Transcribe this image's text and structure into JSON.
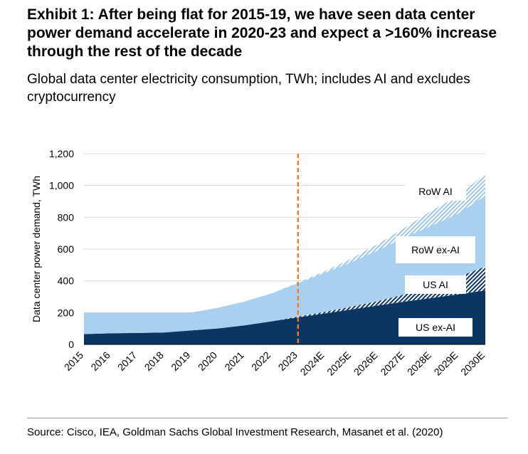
{
  "title": "Exhibit 1: After being flat for 2015-19, we have seen data center power demand accelerate in 2020-23 and expect a >160% increase through the rest of the decade",
  "subtitle": "Global data center electricity consumption, TWh; includes AI and excludes cryptocurrency",
  "source": "Source: Cisco, IEA, Goldman Sachs Global Investment Research, Masanet et al. (2020)",
  "colors": {
    "us_ex_ai": "#0b3563",
    "us_ai_hatch": "#0b3563",
    "row_ex_ai": "#a9d0ef",
    "row_ai_hatch": "#9dc8ec",
    "divider": "#e87b2c",
    "grid": "#d9d9d9"
  },
  "chart_data": {
    "type": "area",
    "stacked": true,
    "categories": [
      "2015",
      "2016",
      "2017",
      "2018",
      "2019",
      "2020",
      "2021",
      "2022",
      "2023",
      "2024E",
      "2025E",
      "2026E",
      "2027E",
      "2028E",
      "2029E",
      "2030E"
    ],
    "series": [
      {
        "name": "US ex-AI",
        "fill": "solid",
        "values": [
          65,
          70,
          72,
          75,
          88,
          100,
          120,
          145,
          170,
          195,
          220,
          245,
          270,
          292,
          315,
          340
        ]
      },
      {
        "name": "US AI",
        "fill": "hatched",
        "values": [
          0,
          0,
          0,
          0,
          0,
          0,
          0,
          0,
          5,
          10,
          18,
          28,
          45,
          75,
          110,
          150
        ]
      },
      {
        "name": "RoW ex-AI",
        "fill": "solid",
        "values": [
          135,
          130,
          128,
          125,
          112,
          130,
          150,
          175,
          210,
          245,
          280,
          320,
          360,
          380,
          400,
          445
        ]
      },
      {
        "name": "RoW AI",
        "fill": "hatched",
        "values": [
          0,
          0,
          0,
          0,
          0,
          0,
          0,
          0,
          5,
          10,
          22,
          40,
          60,
          95,
          110,
          140
        ]
      }
    ],
    "ylabel": "Data center power demand, TWh",
    "ylim": [
      0,
      1200
    ],
    "yticks": [
      0,
      200,
      400,
      600,
      800,
      1000,
      1200
    ],
    "ytick_labels": [
      "0",
      "200",
      "400",
      "600",
      "800",
      "1,000",
      "1,200"
    ],
    "vertical_marker": "2023",
    "grid": true,
    "legend": "in-chart labels"
  }
}
